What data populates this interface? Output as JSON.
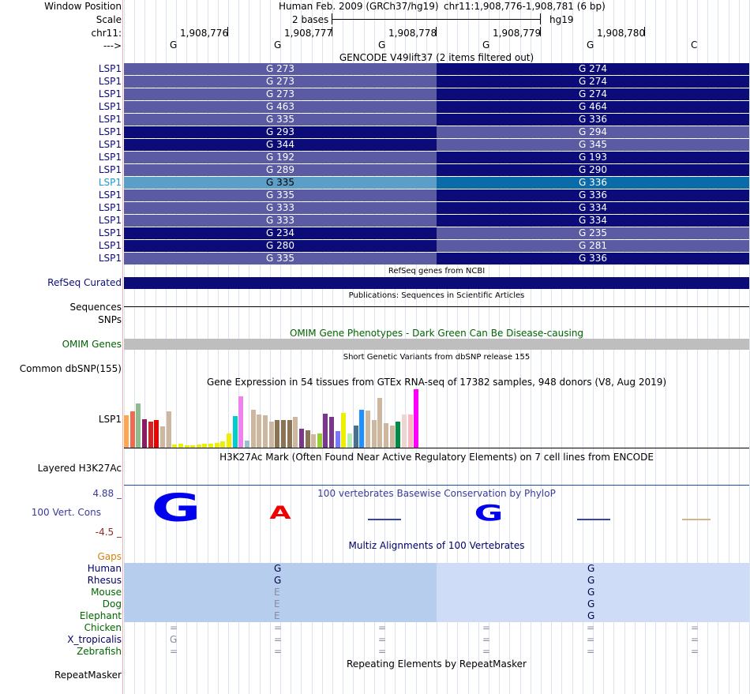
{
  "header": {
    "window_position_label": "Window Position",
    "assembly": "Human Feb. 2009 (GRCh37/hg19)",
    "position": "chr11:1,908,776-1,908,781 (6 bp)",
    "scale_label": "Scale",
    "scale_value": "2 bases",
    "db": "hg19",
    "chrom_label": "chr11:",
    "strand_label": "--->"
  },
  "ruler": {
    "ticks": [
      "1,908,776",
      "1,908,777",
      "1,908,778",
      "1,908,779",
      "1,908,780"
    ],
    "bases": [
      "G",
      "G",
      "G",
      "G",
      "G",
      "C"
    ]
  },
  "gencode": {
    "title": "GENCODE V49lift37 (2 items filtered out)",
    "rows": [
      {
        "label": "LSP1",
        "left": "G 273",
        "right": "G 274",
        "left_color": "#5b5ba3",
        "right_color": "#0c0c78",
        "highlight": false
      },
      {
        "label": "LSP1",
        "left": "G 273",
        "right": "G 274",
        "left_color": "#5b5ba3",
        "right_color": "#0c0c78",
        "highlight": false
      },
      {
        "label": "LSP1",
        "left": "G 273",
        "right": "G 274",
        "left_color": "#5b5ba3",
        "right_color": "#0c0c78",
        "highlight": false
      },
      {
        "label": "LSP1",
        "left": "G 463",
        "right": "G 464",
        "left_color": "#5b5ba3",
        "right_color": "#0c0c78",
        "highlight": false
      },
      {
        "label": "LSP1",
        "left": "G 335",
        "right": "G 336",
        "left_color": "#5b5ba3",
        "right_color": "#0c0c78",
        "highlight": false
      },
      {
        "label": "LSP1",
        "left": "G 293",
        "right": "G 294",
        "left_color": "#0c0c78",
        "right_color": "#5b5ba3",
        "highlight": false
      },
      {
        "label": "LSP1",
        "left": "G 344",
        "right": "G 345",
        "left_color": "#0c0c78",
        "right_color": "#5b5ba3",
        "highlight": false
      },
      {
        "label": "LSP1",
        "left": "G 192",
        "right": "G 193",
        "left_color": "#5b5ba3",
        "right_color": "#0c0c78",
        "highlight": false
      },
      {
        "label": "LSP1",
        "left": "G 289",
        "right": "G 290",
        "left_color": "#5b5ba3",
        "right_color": "#0c0c78",
        "highlight": false
      },
      {
        "label": "LSP1",
        "left": "G 335",
        "right": "G 336",
        "left_color": "#5b9fc8",
        "right_color": "#0b6aa8",
        "highlight": true
      },
      {
        "label": "LSP1",
        "left": "G 335",
        "right": "G 336",
        "left_color": "#5b5ba3",
        "right_color": "#0c0c78",
        "highlight": false
      },
      {
        "label": "LSP1",
        "left": "G 333",
        "right": "G 334",
        "left_color": "#5b5ba3",
        "right_color": "#0c0c78",
        "highlight": false
      },
      {
        "label": "LSP1",
        "left": "G 333",
        "right": "G 334",
        "left_color": "#5b5ba3",
        "right_color": "#0c0c78",
        "highlight": false
      },
      {
        "label": "LSP1",
        "left": "G 234",
        "right": "G 235",
        "left_color": "#0c0c78",
        "right_color": "#5b5ba3",
        "highlight": false
      },
      {
        "label": "LSP1",
        "left": "G 280",
        "right": "G 281",
        "left_color": "#0c0c78",
        "right_color": "#5b5ba3",
        "highlight": false
      },
      {
        "label": "LSP1",
        "left": "G 335",
        "right": "G 336",
        "left_color": "#5b5ba3",
        "right_color": "#0c0c78",
        "highlight": false
      }
    ]
  },
  "refseq": {
    "title": "RefSeq genes from NCBI",
    "label": "RefSeq Curated",
    "color": "#0c0c78"
  },
  "publications": {
    "title": "Publications: Sequences in Scientific Articles",
    "label": "Sequences"
  },
  "snps": {
    "label": "SNPs"
  },
  "omim": {
    "title": "OMIM Gene Phenotypes - Dark Green Can Be Disease-causing",
    "label": "OMIM Genes",
    "color": "#bebebe",
    "text_color": "#006400"
  },
  "dbsnp": {
    "title": "Short Genetic Variants from dbSNP release 155",
    "label": "Common dbSNP(155)"
  },
  "gtex": {
    "title": "Gene Expression in 54 tissues from GTEx RNA-seq of 17382 samples, 948 donors (V8, Aug 2019)",
    "label": "LSP1",
    "bars": [
      {
        "v": 40,
        "c": "#ffa54f"
      },
      {
        "v": 45,
        "c": "#ee6a50"
      },
      {
        "v": 55,
        "c": "#8fbc8f"
      },
      {
        "v": 36,
        "c": "#8b1c62"
      },
      {
        "v": 33,
        "c": "#cd2626"
      },
      {
        "v": 35,
        "c": "#ee0000"
      },
      {
        "v": 27,
        "c": "#cdb79e"
      },
      {
        "v": 45,
        "c": "#cdb79e"
      },
      {
        "v": 4,
        "c": "#eeee00"
      },
      {
        "v": 5,
        "c": "#eeee00"
      },
      {
        "v": 3,
        "c": "#eeee00"
      },
      {
        "v": 3,
        "c": "#eeee00"
      },
      {
        "v": 4,
        "c": "#eeee00"
      },
      {
        "v": 5,
        "c": "#eeee00"
      },
      {
        "v": 5,
        "c": "#eeee00"
      },
      {
        "v": 6,
        "c": "#eeee00"
      },
      {
        "v": 8,
        "c": "#eeee00"
      },
      {
        "v": 18,
        "c": "#eeee00"
      },
      {
        "v": 39,
        "c": "#00cdcd"
      },
      {
        "v": 64,
        "c": "#ee82ee"
      },
      {
        "v": 9,
        "c": "#9ac0cd"
      },
      {
        "v": 47,
        "c": "#cdb79e"
      },
      {
        "v": 41,
        "c": "#cdb79e"
      },
      {
        "v": 40,
        "c": "#cdb79e"
      },
      {
        "v": 33,
        "c": "#cdb79e"
      },
      {
        "v": 35,
        "c": "#8b7355"
      },
      {
        "v": 35,
        "c": "#8b7355"
      },
      {
        "v": 35,
        "c": "#8b7355"
      },
      {
        "v": 38,
        "c": "#cdb79e"
      },
      {
        "v": 24,
        "c": "#7a378b"
      },
      {
        "v": 22,
        "c": "#8b7355"
      },
      {
        "v": 17,
        "c": "#cdb79e"
      },
      {
        "v": 18,
        "c": "#9acd32"
      },
      {
        "v": 42,
        "c": "#7a378b"
      },
      {
        "v": 38,
        "c": "#7a378b"
      },
      {
        "v": 21,
        "c": "#7777ff"
      },
      {
        "v": 43,
        "c": "#eeee00"
      },
      {
        "v": 18,
        "c": "#b4eeb4"
      },
      {
        "v": 28,
        "c": "#4a708b"
      },
      {
        "v": 47,
        "c": "#1e90ff"
      },
      {
        "v": 46,
        "c": "#cdb79e"
      },
      {
        "v": 35,
        "c": "#cdb79e"
      },
      {
        "v": 62,
        "c": "#cdb79e"
      },
      {
        "v": 31,
        "c": "#cdb79e"
      },
      {
        "v": 28,
        "c": "#cdb79e"
      },
      {
        "v": 33,
        "c": "#008b45"
      },
      {
        "v": 41,
        "c": "#eed5d2"
      },
      {
        "v": 41,
        "c": "#ffb6c1"
      },
      {
        "v": 73,
        "c": "#ff00ff"
      }
    ]
  },
  "h3k27ac": {
    "title": "H3K27Ac Mark (Often Found Near Active Regulatory Elements) on 7 cell lines from ENCODE",
    "label": "Layered H3K27Ac"
  },
  "conservation": {
    "title": "100 vertebrates Basewise Conservation by PhyloP",
    "label": "100 Vert. Cons",
    "max": "4.88 _",
    "min": "-4.5 _",
    "letters": [
      "G",
      "A",
      "",
      "G",
      "",
      ""
    ]
  },
  "multiz": {
    "title": "Multiz Alignments of 100 Vertebrates",
    "gaps_label": "Gaps",
    "rows": [
      {
        "species": "Human",
        "left": "G",
        "right": "G",
        "color": "#000066"
      },
      {
        "species": "Rhesus",
        "left": "G",
        "right": "G",
        "color": "#000066"
      },
      {
        "species": "Mouse",
        "left": "E",
        "right": "G",
        "color": "#006600"
      },
      {
        "species": "Dog",
        "left": "E",
        "right": "G",
        "color": "#006600"
      },
      {
        "species": "Elephant",
        "left": "E",
        "right": "G",
        "color": "#006600"
      },
      {
        "species": "Chicken",
        "color": "#006600"
      },
      {
        "species": "X_tropicalis",
        "color": "#000066"
      },
      {
        "species": "Zebrafish",
        "color": "#006600"
      }
    ],
    "x_tropicalis_base": "G",
    "gap_char": "="
  },
  "repeatmasker": {
    "title": "Repeating Elements by RepeatMasker",
    "label": "RepeatMasker"
  }
}
